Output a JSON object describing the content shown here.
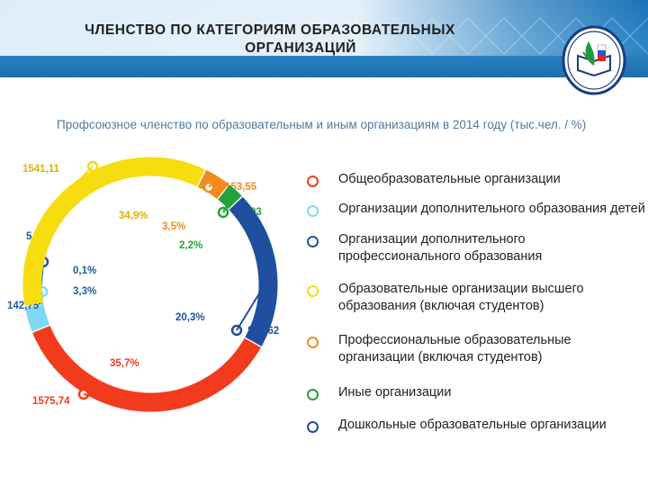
{
  "slide": {
    "title_line1": "ЧЛЕНСТВО ПО КАТЕГОРИЯМ  ОБРАЗОВАТЕЛЬНЫХ",
    "title_line2": "ОРГАНИЗАЦИЙ",
    "logo_icon": "union-logo-icon"
  },
  "chart_data": {
    "type": "donut",
    "title": "Профсоюзное членство по образовательным и иным организациям в 2014 году (тыс.чел. / %)",
    "series": [
      {
        "name": "Общеобразовательные организации",
        "value": 1575.74,
        "value_label": "1575,74",
        "percent_label": "35,7%",
        "color": "#f23b1d"
      },
      {
        "name": "Организации дополнительного образования детей",
        "value": 142.75,
        "value_label": "142,75",
        "percent_label": "3,3%",
        "color": "#7fd9f2"
      },
      {
        "name": "Организации дополнительного профессионального образования",
        "value": 5.26,
        "value_label": "5,26",
        "percent_label": "0,1%",
        "color": "#1e5a9c"
      },
      {
        "name": "Образовательные организации высшего образования (включая студентов)",
        "value": 1541.11,
        "value_label": "1541,11",
        "percent_label": "34,9%",
        "color": "#f7dc10"
      },
      {
        "name": "Профессиональные образовательные организации (включая студентов)",
        "value": 153.55,
        "value_label": "153,55",
        "percent_label": "3,5%",
        "color": "#f28a1c"
      },
      {
        "name": "Иные организации",
        "value": 97.93,
        "value_label": "97,93",
        "percent_label": "2,2%",
        "color": "#26a23c"
      },
      {
        "name": "Дошкольные образовательные организации",
        "value": 896.62,
        "value_label": "896,62",
        "percent_label": "20,3%",
        "color": "#1f4f9e"
      }
    ]
  },
  "colors": {
    "header_blue": "#1f77bf",
    "subtitle": "#4e7aa0"
  }
}
